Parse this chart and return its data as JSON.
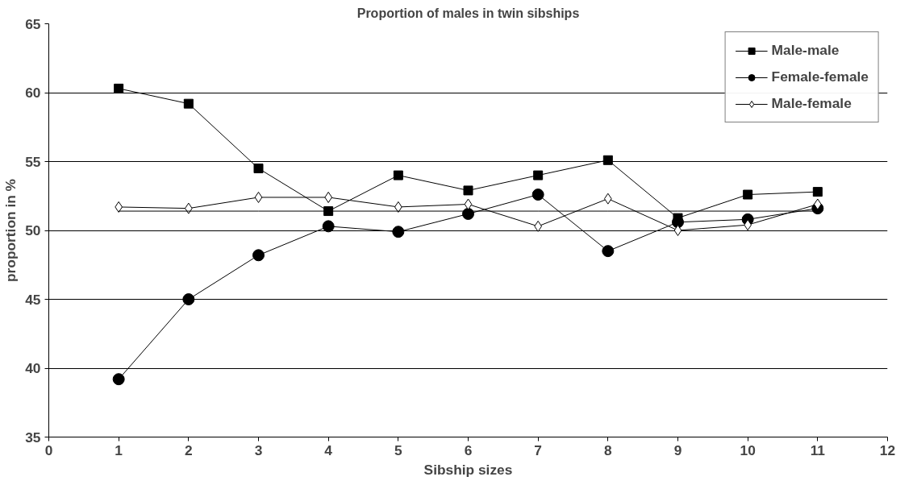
{
  "chart_data": {
    "type": "line",
    "title": "Proportion of males in twin sibships",
    "xlabel": "Sibship sizes",
    "ylabel": "proportion in %",
    "x": [
      1,
      2,
      3,
      4,
      5,
      6,
      7,
      8,
      9,
      10,
      11
    ],
    "series": [
      {
        "name": "Male-male",
        "color": "#000000",
        "marker": "square",
        "values": [
          60.3,
          59.2,
          54.5,
          51.4,
          54.0,
          52.9,
          54.0,
          55.1,
          50.9,
          52.6,
          52.8
        ]
      },
      {
        "name": "Female-female",
        "color": "#000000",
        "marker": "circle",
        "values": [
          39.2,
          45.0,
          48.2,
          50.3,
          49.9,
          51.2,
          52.6,
          48.5,
          50.6,
          50.8,
          51.6
        ]
      },
      {
        "name": "Male-female",
        "color": "#000000",
        "marker": "diamond",
        "values": [
          51.7,
          51.6,
          52.4,
          52.4,
          51.7,
          51.9,
          50.3,
          52.3,
          50.0,
          50.4,
          51.9
        ]
      },
      {
        "color": "#000000",
        "marker": "none",
        "values": [
          51.4,
          51.4,
          51.4,
          51.4,
          51.4,
          51.4,
          51.4,
          51.4,
          51.4,
          51.4,
          51.4
        ]
      }
    ],
    "xlim": [
      0,
      12
    ],
    "xticks": [
      0,
      1,
      2,
      3,
      4,
      5,
      6,
      7,
      8,
      9,
      10,
      11,
      12
    ],
    "ylim": [
      35,
      65
    ],
    "yticks": [
      35,
      40,
      45,
      50,
      55,
      60,
      65
    ],
    "grid": "y",
    "legend": "top right",
    "line_style": "solid"
  }
}
